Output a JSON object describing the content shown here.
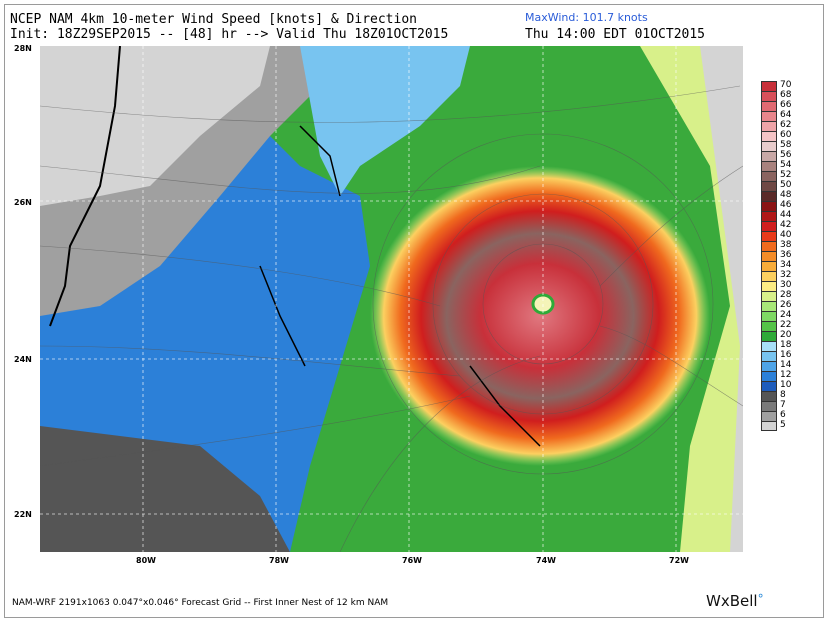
{
  "header": {
    "title": "NCEP NAM 4km 10-meter Wind Speed [knots] & Direction",
    "init_line": "Init: 18Z29SEP2015 -- [48] hr --> Valid Thu 18Z01OCT2015",
    "max_wind": "MaxWind: 101.7 knots",
    "valid_local": "Thu 14:00 EDT 01OCT2015"
  },
  "map": {
    "lat_labels": [
      "28N",
      "26N",
      "24N",
      "22N"
    ],
    "lon_labels": [
      "80W",
      "78W",
      "76W",
      "74W",
      "72W"
    ],
    "storm_center": {
      "lat": 24.6,
      "lon": -74.0
    }
  },
  "colorbar": {
    "unit": "knots",
    "levels": [
      {
        "value": "70",
        "color": "#c8303a"
      },
      {
        "value": "68",
        "color": "#d8505a"
      },
      {
        "value": "66",
        "color": "#e06a72"
      },
      {
        "value": "64",
        "color": "#e8868c"
      },
      {
        "value": "62",
        "color": "#eea4a8"
      },
      {
        "value": "60",
        "color": "#f4c4c6"
      },
      {
        "value": "58",
        "color": "#e8cccc"
      },
      {
        "value": "56",
        "color": "#c8a8a6"
      },
      {
        "value": "54",
        "color": "#a8827e"
      },
      {
        "value": "52",
        "color": "#8a6460"
      },
      {
        "value": "50",
        "color": "#6e4844"
      },
      {
        "value": "48",
        "color": "#5a2a28"
      },
      {
        "value": "46",
        "color": "#8a1414"
      },
      {
        "value": "44",
        "color": "#b01818"
      },
      {
        "value": "42",
        "color": "#d01e1e"
      },
      {
        "value": "40",
        "color": "#e83a1a"
      },
      {
        "value": "38",
        "color": "#f06a1e"
      },
      {
        "value": "36",
        "color": "#f48c28"
      },
      {
        "value": "34",
        "color": "#f8ac3a"
      },
      {
        "value": "32",
        "color": "#fcd060"
      },
      {
        "value": "30",
        "color": "#fcec84"
      },
      {
        "value": "28",
        "color": "#d8f08a"
      },
      {
        "value": "26",
        "color": "#a8e878"
      },
      {
        "value": "24",
        "color": "#7ed864"
      },
      {
        "value": "22",
        "color": "#54c448"
      },
      {
        "value": "20",
        "color": "#2eaa38"
      },
      {
        "value": "18",
        "color": "#a8e0f8"
      },
      {
        "value": "16",
        "color": "#78c4f0"
      },
      {
        "value": "14",
        "color": "#4ea4e8"
      },
      {
        "value": "12",
        "color": "#2c80d8"
      },
      {
        "value": "10",
        "color": "#1e5cbc"
      },
      {
        "value": "8",
        "color": "#555555"
      },
      {
        "value": "7",
        "color": "#7a7a7a"
      },
      {
        "value": "6",
        "color": "#a0a0a0"
      },
      {
        "value": "5",
        "color": "#d4d4d4"
      }
    ]
  },
  "footer": {
    "text": "NAM-WRF 2191x1063 0.047°x0.046° Forecast Grid -- First Inner Nest of 12 km NAM",
    "logo": "WxBell",
    "logo_mark": "°"
  }
}
